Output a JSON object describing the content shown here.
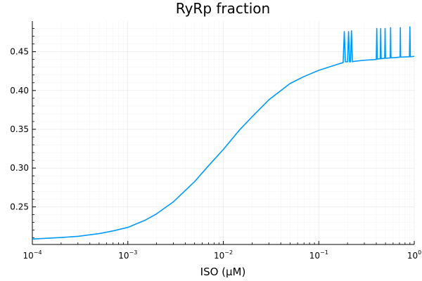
{
  "chart_data": {
    "type": "line",
    "title": "RyRp fraction",
    "xlabel": "ISO (μM)",
    "ylabel": "",
    "xscale": "log10",
    "xlim": [
      0.0001,
      1
    ],
    "ylim": [
      0.2015,
      0.4895
    ],
    "grid": true,
    "legend": "none",
    "line_color": "#009AFA",
    "x_ticks": [
      {
        "base": "10",
        "exp": "−4",
        "value": 0.0001
      },
      {
        "base": "10",
        "exp": "−3",
        "value": 0.001
      },
      {
        "base": "10",
        "exp": "−2",
        "value": 0.01
      },
      {
        "base": "10",
        "exp": "−1",
        "value": 0.1
      },
      {
        "base": "10",
        "exp": "0",
        "value": 1
      }
    ],
    "y_ticks": [
      {
        "label": "0.25",
        "value": 0.25
      },
      {
        "label": "0.30",
        "value": 0.3
      },
      {
        "label": "0.35",
        "value": 0.35
      },
      {
        "label": "0.40",
        "value": 0.4
      },
      {
        "label": "0.45",
        "value": 0.45
      }
    ],
    "series": [
      {
        "x": [
          0.0001,
          0.0002,
          0.0003,
          0.0005,
          0.0007,
          0.001,
          0.0015,
          0.002,
          0.003,
          0.005,
          0.007,
          0.01,
          0.015,
          0.02,
          0.03,
          0.05,
          0.07,
          0.1,
          0.15,
          0.18,
          0.185,
          0.19,
          0.2,
          0.205,
          0.21,
          0.215,
          0.22,
          0.225,
          0.23,
          0.3,
          0.4,
          0.405,
          0.41,
          0.44,
          0.445,
          0.45,
          0.49,
          0.495,
          0.5,
          0.56,
          0.565,
          0.57,
          0.71,
          0.715,
          0.72,
          0.89,
          0.9,
          0.91,
          1.0
        ],
        "y": [
          0.2085,
          0.2105,
          0.212,
          0.2155,
          0.219,
          0.2235,
          0.2325,
          0.241,
          0.2565,
          0.2825,
          0.303,
          0.324,
          0.35,
          0.366,
          0.388,
          0.409,
          0.418,
          0.426,
          0.433,
          0.436,
          0.476,
          0.437,
          0.437,
          0.476,
          0.437,
          0.437,
          0.477,
          0.437,
          0.4375,
          0.439,
          0.44,
          0.48,
          0.4405,
          0.441,
          0.48,
          0.441,
          0.4415,
          0.48,
          0.4415,
          0.442,
          0.481,
          0.442,
          0.443,
          0.481,
          0.443,
          0.4435,
          0.482,
          0.4435,
          0.444
        ]
      }
    ]
  }
}
